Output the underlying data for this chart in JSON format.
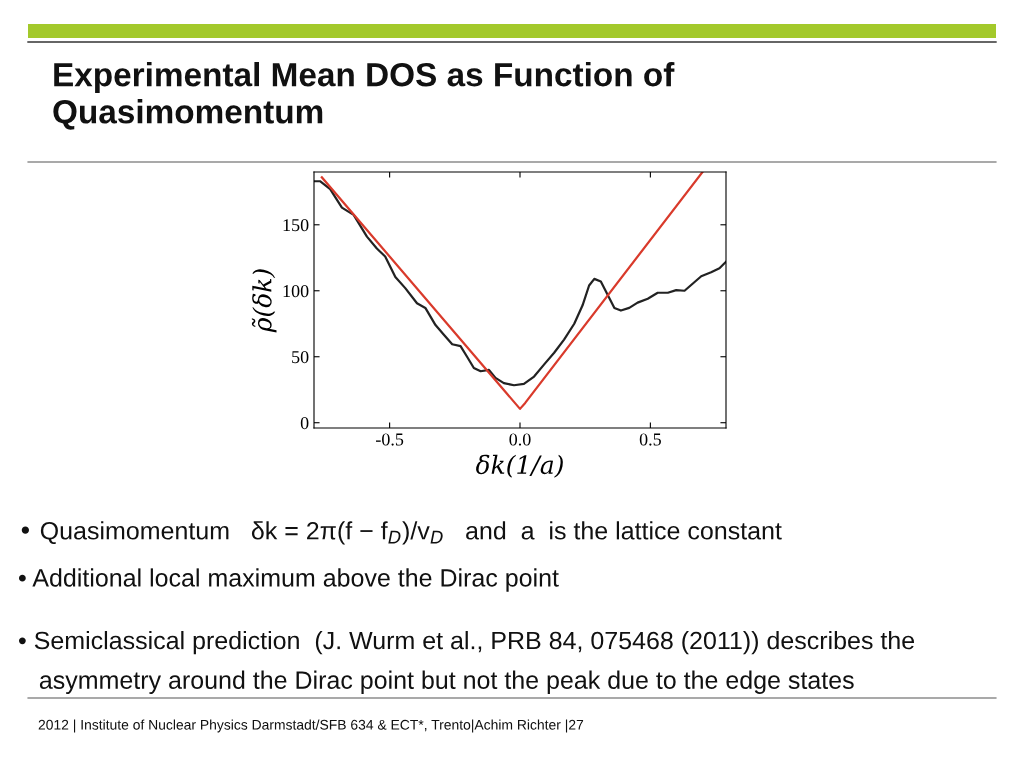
{
  "chart_data": {
    "type": "line",
    "title": "Experimental Mean DOS as Function of\nQuasimomentum",
    "xlabel": "δk(1/a)",
    "ylabel": "ρ̃(δk)",
    "xlim": [
      -0.79,
      0.79
    ],
    "ylim": [
      -4,
      190
    ],
    "xticks": [
      {
        "value": -0.5,
        "label": "-0.5"
      },
      {
        "value": 0,
        "label": "0.0"
      },
      {
        "value": 0.5,
        "label": "0.5"
      }
    ],
    "yticks": [
      0,
      50,
      100,
      150
    ],
    "grid": false,
    "marker": "none",
    "line_style": "solid",
    "series": [
      {
        "color": "#222222",
        "x": [
          -0.79,
          -0.767,
          -0.728,
          -0.683,
          -0.638,
          -0.587,
          -0.549,
          -0.517,
          -0.478,
          -0.44,
          -0.395,
          -0.363,
          -0.324,
          -0.292,
          -0.26,
          -0.228,
          -0.203,
          -0.177,
          -0.151,
          -0.119,
          -0.094,
          -0.062,
          -0.023,
          0.015,
          0.054,
          0.092,
          0.131,
          0.169,
          0.208,
          0.24,
          0.265,
          0.285,
          0.31,
          0.336,
          0.362,
          0.387,
          0.419,
          0.451,
          0.49,
          0.528,
          0.567,
          0.599,
          0.631,
          0.663,
          0.695,
          0.733,
          0.765,
          0.79
        ],
        "values": [
          183,
          183,
          177,
          163,
          157.5,
          141,
          132,
          126,
          110.5,
          102,
          90.5,
          87,
          74,
          66.6,
          59.5,
          58,
          50,
          41.5,
          39,
          40,
          34,
          30,
          28.4,
          29.4,
          35,
          44,
          53,
          63,
          75,
          89,
          104,
          109,
          107,
          97,
          87,
          85,
          87,
          91,
          94,
          98.5,
          98.5,
          100.5,
          100,
          105.5,
          111,
          114,
          117,
          122
        ]
      },
      {
        "color": "#d93a2b",
        "x": [
          -0.76,
          0,
          0.02,
          0.7
        ],
        "values": [
          186,
          10.5,
          15,
          190
        ]
      }
    ],
    "annotations": [
      "• Quasimomentum   δk = 2π(f − f$_{D}$)/v$_{D}$   and  a  is the lattice constant",
      "• Additional local maximum above the Dirac point",
      "• Semiclassical prediction  (J. Wurm et al., PRB 84, 075468 (2011)) describes the\n   asymmetry around the Dirac point but not the peak due to the edge states",
      "2012 | Institute of Nuclear Physics Darmstadt/SFB 634 & ECT*, Trento|Achim Richter |27"
    ]
  }
}
